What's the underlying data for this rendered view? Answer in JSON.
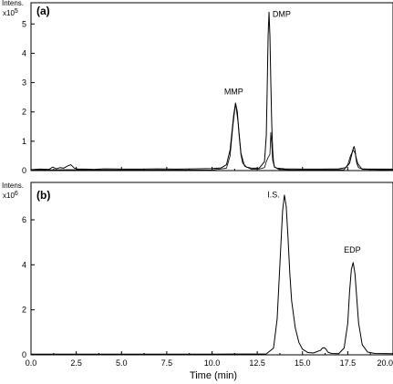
{
  "chart_data": [
    {
      "type": "line",
      "panel_label": "(a)",
      "yunit_line1": "Intens.",
      "yunit_line2": "x10",
      "yunit_exp": "5",
      "xlim": [
        0,
        20
      ],
      "ylim": [
        0,
        5.6
      ],
      "yticks": [
        "0",
        "1",
        "2",
        "3",
        "4",
        "5"
      ],
      "series": [
        {
          "x": [
            0.0,
            0.5,
            1.0,
            1.2,
            1.4,
            1.6,
            1.8,
            2.0,
            2.2,
            2.4,
            2.6,
            3.0,
            3.5,
            4.0,
            5.0,
            6.0,
            7.0,
            8.0,
            9.0,
            10.0,
            10.5,
            10.8,
            11.0,
            11.1,
            11.2,
            11.3,
            11.4,
            11.5,
            11.6,
            11.7,
            11.9,
            12.2,
            12.6,
            12.9,
            13.0,
            13.05,
            13.1,
            13.15,
            13.2,
            13.25,
            13.3,
            13.35,
            13.4,
            13.45,
            13.6,
            14.0,
            15.0,
            16.0,
            17.0,
            17.4,
            17.6,
            17.7,
            17.8,
            17.85,
            17.9,
            17.95,
            18.0,
            18.1,
            18.3,
            18.6,
            19.0,
            20.0
          ],
          "y": [
            0.03,
            0.05,
            0.04,
            0.12,
            0.06,
            0.1,
            0.08,
            0.15,
            0.2,
            0.08,
            0.05,
            0.05,
            0.04,
            0.06,
            0.05,
            0.05,
            0.06,
            0.05,
            0.06,
            0.07,
            0.09,
            0.2,
            0.7,
            1.3,
            1.9,
            2.3,
            2.0,
            1.2,
            0.55,
            0.25,
            0.12,
            0.08,
            0.08,
            0.3,
            1.2,
            2.8,
            4.6,
            5.4,
            4.6,
            3.0,
            1.6,
            0.7,
            0.3,
            0.12,
            0.08,
            0.06,
            0.05,
            0.05,
            0.06,
            0.1,
            0.25,
            0.5,
            0.75,
            0.82,
            0.7,
            0.45,
            0.25,
            0.1,
            0.06,
            0.05,
            0.05,
            0.05
          ]
        },
        {
          "x": [
            0.0,
            2.0,
            4.0,
            6.0,
            8.0,
            10.0,
            10.8,
            11.0,
            11.15,
            11.3,
            11.45,
            11.6,
            11.8,
            12.2,
            12.6,
            12.9,
            13.0,
            13.1,
            13.2,
            13.25,
            13.3,
            13.35,
            13.45,
            13.7,
            14.5,
            16.0,
            17.3,
            17.5,
            17.65,
            17.8,
            17.9,
            18.05,
            18.3,
            20.0
          ],
          "y": [
            0.02,
            0.03,
            0.02,
            0.02,
            0.02,
            0.02,
            0.08,
            0.5,
            1.5,
            2.3,
            1.6,
            0.6,
            0.15,
            0.04,
            0.05,
            0.1,
            0.3,
            0.45,
            0.55,
            1.3,
            0.9,
            0.35,
            0.12,
            0.04,
            0.02,
            0.02,
            0.03,
            0.2,
            0.5,
            0.7,
            0.6,
            0.25,
            0.04,
            0.02
          ]
        }
      ],
      "annotations": [
        {
          "text": "MMP",
          "x": 11.2,
          "y": 2.6
        },
        {
          "text": "DMP",
          "x": 13.85,
          "y": 5.25
        }
      ]
    },
    {
      "type": "line",
      "panel_label": "(b)",
      "yunit_line1": "Intens.",
      "yunit_line2": "x10",
      "yunit_exp": "6",
      "xlim": [
        0,
        20
      ],
      "ylim": [
        0,
        7.5
      ],
      "yticks": [
        "0",
        "2",
        "4",
        "6"
      ],
      "xticks": [
        "0.0",
        "2.5",
        "5.0",
        "7.5",
        "10.0",
        "12.5",
        "15.0",
        "17.5",
        "20.0"
      ],
      "xlabel": "Time (min)",
      "series": [
        {
          "x": [
            0.0,
            5.0,
            10.0,
            13.0,
            13.4,
            13.6,
            13.8,
            13.9,
            14.0,
            14.1,
            14.2,
            14.3,
            14.4,
            14.6,
            14.8,
            15.0,
            15.3,
            15.6,
            16.0,
            16.1,
            16.2,
            16.3,
            16.4,
            16.6,
            17.0,
            17.3,
            17.5,
            17.6,
            17.7,
            17.8,
            17.9,
            18.0,
            18.1,
            18.3,
            18.6,
            19.0,
            20.0
          ],
          "y": [
            0.03,
            0.03,
            0.03,
            0.04,
            0.3,
            1.6,
            4.8,
            6.4,
            7.1,
            6.6,
            5.2,
            3.6,
            2.4,
            1.2,
            0.55,
            0.25,
            0.1,
            0.08,
            0.2,
            0.3,
            0.32,
            0.25,
            0.12,
            0.06,
            0.05,
            0.3,
            1.4,
            2.8,
            3.8,
            4.1,
            3.6,
            2.5,
            1.4,
            0.45,
            0.12,
            0.06,
            0.05
          ]
        }
      ],
      "annotations": [
        {
          "text": "I.S.",
          "x": 13.4,
          "y": 7.0
        },
        {
          "text": "EDP",
          "x": 17.75,
          "y": 4.55
        }
      ]
    }
  ]
}
